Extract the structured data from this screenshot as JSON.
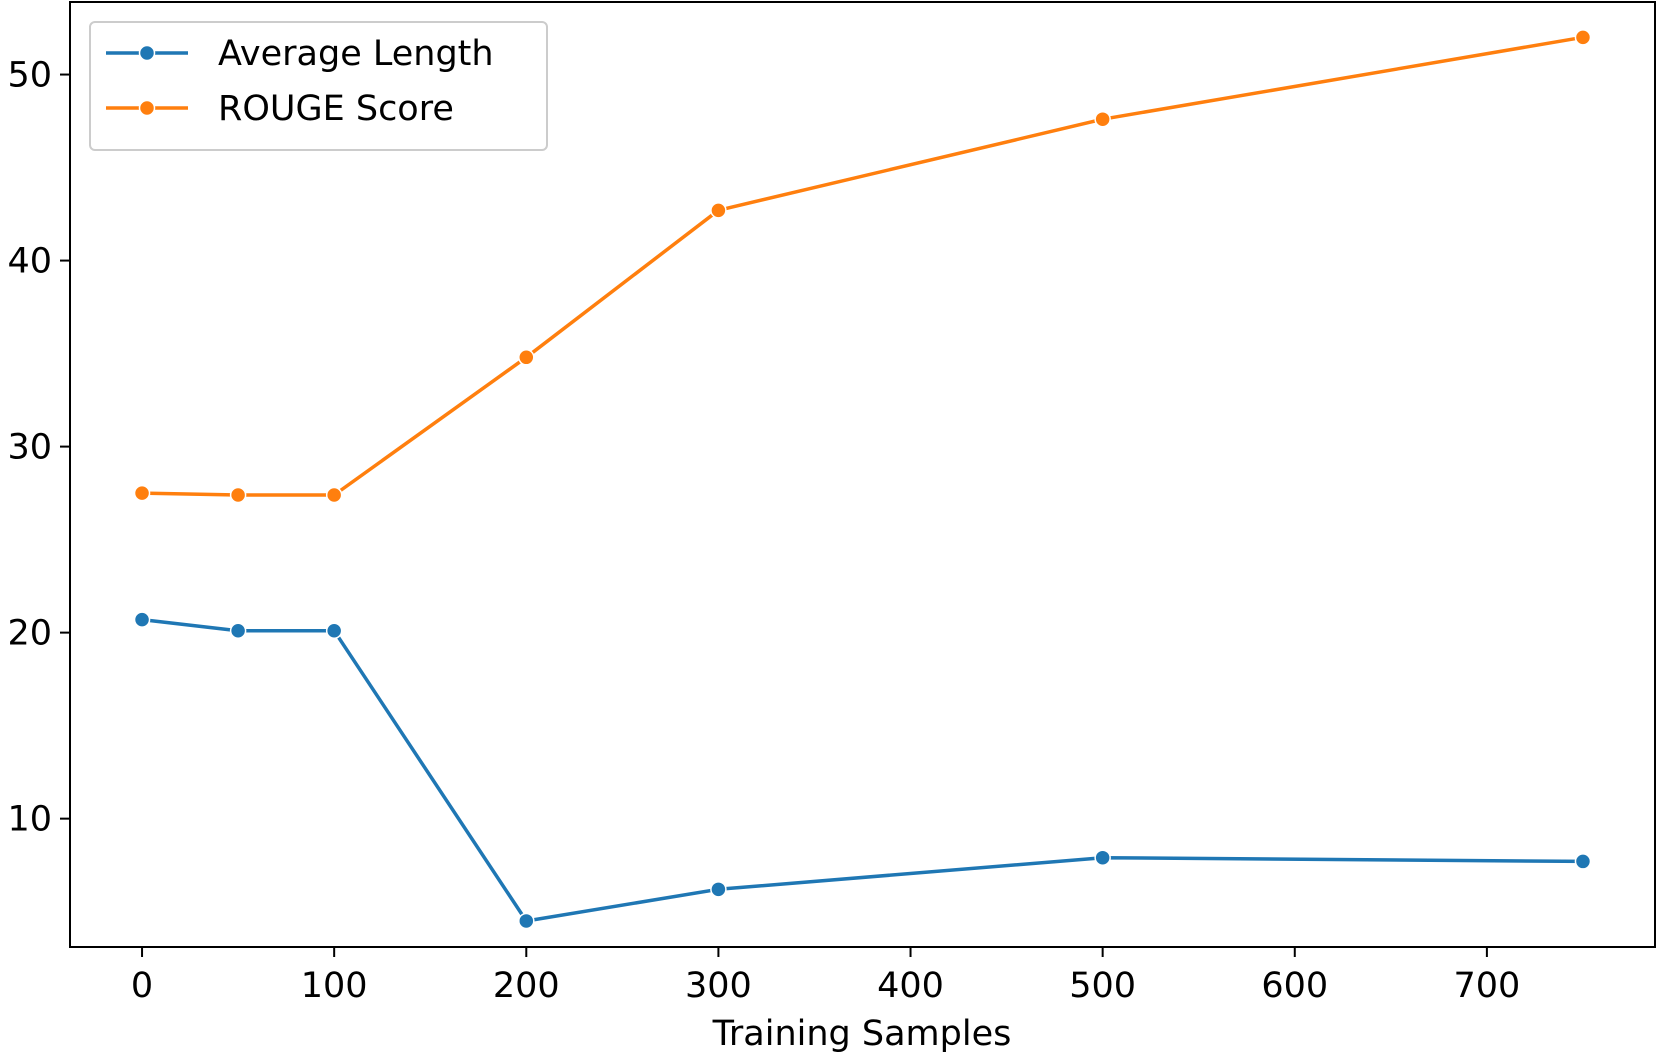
{
  "chart_data": {
    "type": "line",
    "title": "",
    "xlabel": "Training Samples",
    "ylabel": "",
    "x": [
      0,
      50,
      100,
      200,
      300,
      500,
      750
    ],
    "xlim": [
      -37.5,
      787.5
    ],
    "ylim": [
      3.1,
      53.9
    ],
    "xticks": [
      0,
      100,
      200,
      300,
      400,
      500,
      600,
      700
    ],
    "yticks": [
      10,
      20,
      30,
      40,
      50
    ],
    "grid": false,
    "legend_position": "top-left",
    "series": [
      {
        "name": "Average Length",
        "color": "#1f77b4",
        "marker": "circle",
        "values": [
          20.7,
          20.1,
          20.1,
          4.5,
          6.2,
          7.9,
          7.7
        ]
      },
      {
        "name": "ROUGE Score",
        "color": "#ff7f0e",
        "marker": "circle",
        "values": [
          27.5,
          27.4,
          27.4,
          34.8,
          42.7,
          47.6,
          52.0
        ]
      }
    ]
  }
}
